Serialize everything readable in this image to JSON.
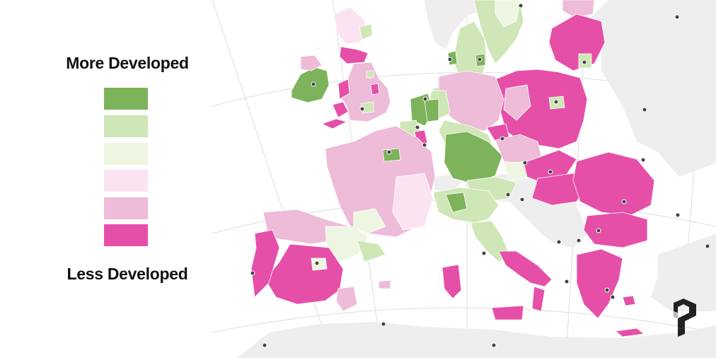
{
  "legend": {
    "top_label": "More Developed",
    "bottom_label": "Less Developed",
    "classes": [
      {
        "rank": 1,
        "color": "#7db35b"
      },
      {
        "rank": 2,
        "color": "#cfe6b6"
      },
      {
        "rank": 3,
        "color": "#eef6e2"
      },
      {
        "rank": 4,
        "color": "#fbe3f1"
      },
      {
        "rank": 5,
        "color": "#eebbd9"
      },
      {
        "rank": 6,
        "color": "#e64fa8"
      }
    ]
  },
  "colors": {
    "background": "#ffffff",
    "land_non_eu": "#eeeeee",
    "graticule": "#dddddd",
    "region_border": "#ffffff",
    "capital_marker": "#444444",
    "no_data": "#e4e4e4"
  },
  "icons": [
    "capital-marker-icon",
    "brand-logo-icon"
  ]
}
